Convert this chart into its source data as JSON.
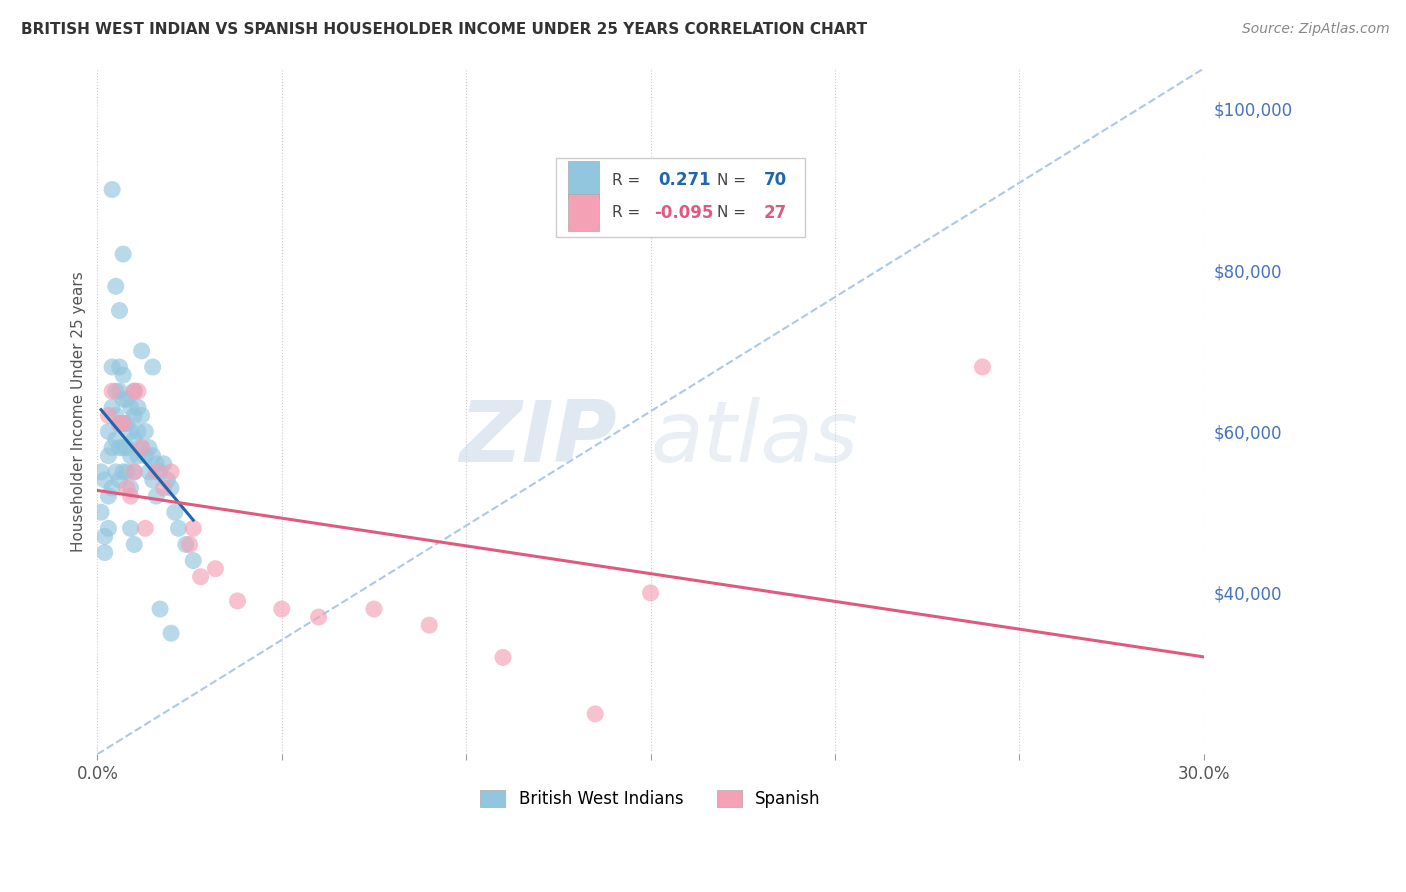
{
  "title": "BRITISH WEST INDIAN VS SPANISH HOUSEHOLDER INCOME UNDER 25 YEARS CORRELATION CHART",
  "source": "Source: ZipAtlas.com",
  "ylabel": "Householder Income Under 25 years",
  "xlim": [
    0.0,
    0.3
  ],
  "ylim": [
    20000,
    105000
  ],
  "xticks": [
    0.0,
    0.05,
    0.1,
    0.15,
    0.2,
    0.25,
    0.3
  ],
  "xticklabels": [
    "0.0%",
    "",
    "",
    "",
    "",
    "",
    "30.0%"
  ],
  "ytick_labels_right": [
    "$40,000",
    "$60,000",
    "$80,000",
    "$100,000"
  ],
  "ytick_values_right": [
    40000,
    60000,
    80000,
    100000
  ],
  "bwi_color": "#92c5de",
  "spanish_color": "#f4a0b5",
  "bwi_line_color": "#2166ac",
  "spanish_line_color": "#e05a80",
  "dashed_line_color": "#adc8e8",
  "legend_bwi_R": "0.271",
  "legend_bwi_N": "70",
  "legend_spanish_R": "-0.095",
  "legend_spanish_N": "27",
  "legend_label_bwi": "British West Indians",
  "legend_label_spanish": "Spanish",
  "watermark_zip": "ZIP",
  "watermark_atlas": "atlas",
  "bwi_x": [
    0.001,
    0.001,
    0.002,
    0.002,
    0.002,
    0.003,
    0.003,
    0.003,
    0.003,
    0.004,
    0.004,
    0.004,
    0.004,
    0.005,
    0.005,
    0.005,
    0.005,
    0.006,
    0.006,
    0.006,
    0.006,
    0.006,
    0.007,
    0.007,
    0.007,
    0.007,
    0.007,
    0.008,
    0.008,
    0.008,
    0.008,
    0.009,
    0.009,
    0.009,
    0.009,
    0.01,
    0.01,
    0.01,
    0.01,
    0.011,
    0.011,
    0.011,
    0.012,
    0.012,
    0.013,
    0.013,
    0.014,
    0.014,
    0.015,
    0.015,
    0.016,
    0.016,
    0.017,
    0.018,
    0.019,
    0.02,
    0.021,
    0.022,
    0.024,
    0.026,
    0.004,
    0.005,
    0.006,
    0.007,
    0.009,
    0.01,
    0.012,
    0.015,
    0.017,
    0.02
  ],
  "bwi_y": [
    50000,
    55000,
    47000,
    54000,
    45000,
    60000,
    57000,
    52000,
    48000,
    63000,
    68000,
    58000,
    53000,
    65000,
    62000,
    59000,
    55000,
    68000,
    65000,
    61000,
    58000,
    54000,
    67000,
    64000,
    61000,
    58000,
    55000,
    64000,
    61000,
    58000,
    55000,
    63000,
    60000,
    57000,
    53000,
    65000,
    62000,
    59000,
    55000,
    63000,
    60000,
    57000,
    62000,
    58000,
    60000,
    57000,
    58000,
    55000,
    57000,
    54000,
    56000,
    52000,
    55000,
    56000,
    54000,
    53000,
    50000,
    48000,
    46000,
    44000,
    90000,
    78000,
    75000,
    82000,
    48000,
    46000,
    70000,
    68000,
    38000,
    35000
  ],
  "spanish_x": [
    0.003,
    0.004,
    0.006,
    0.007,
    0.008,
    0.009,
    0.01,
    0.01,
    0.011,
    0.012,
    0.013,
    0.016,
    0.018,
    0.02,
    0.025,
    0.026,
    0.028,
    0.032,
    0.038,
    0.05,
    0.06,
    0.075,
    0.09,
    0.11,
    0.15,
    0.24,
    0.135
  ],
  "spanish_y": [
    62000,
    65000,
    61000,
    61000,
    53000,
    52000,
    65000,
    55000,
    65000,
    58000,
    48000,
    55000,
    53000,
    55000,
    46000,
    48000,
    42000,
    43000,
    39000,
    38000,
    37000,
    38000,
    36000,
    32000,
    40000,
    68000,
    25000
  ]
}
